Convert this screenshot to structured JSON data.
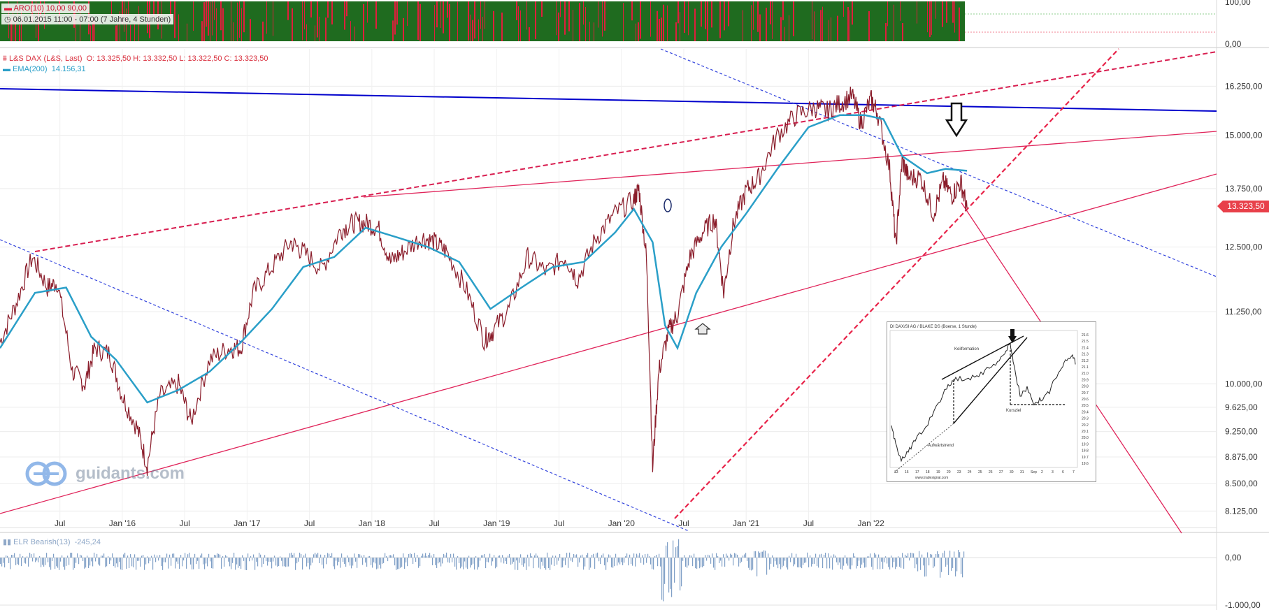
{
  "top_panel": {
    "indicator": "ARO(10)",
    "values": "10,00  90,00",
    "range": "06.01.2015 11:00 - 07:00",
    "duration": "(7 Jahre, 4 Stunden)",
    "axis": [
      "100,00",
      "0,00"
    ]
  },
  "main_panel": {
    "instrument": "L&S DAX (L&S, Last)",
    "ohlc": "O: 13.325,50  H: 13.332,50  L: 13.322,50  C: 13.323,50",
    "ema": "EMA(200)",
    "ema_value": "14.156,31",
    "last_price": "13.323,50"
  },
  "bottom_panel": {
    "indicator": "ELR Bearish(13)",
    "value": "-245,24",
    "axis": [
      "0,00",
      "-1.000,00"
    ]
  },
  "logo": {
    "text": "guidants.com"
  },
  "inset": {
    "title": "DI DAX/SI AG / BLAKE DS (Boerse, 1 Stunde)",
    "label_keil": "Keilformation",
    "label_kurs": "Kursziel",
    "label_auf": "Aufwärtstrend",
    "xlabels": [
      "13",
      "16",
      "17",
      "18",
      "19",
      "20",
      "23",
      "24",
      "25",
      "26",
      "27",
      "30",
      "31",
      "Sep",
      "2",
      "3",
      "6",
      "7"
    ],
    "ylabels": [
      "21.6",
      "21.5",
      "21.4",
      "21.3",
      "21.2",
      "21.1",
      "21.0",
      "20.9",
      "20.8",
      "20.7",
      "20.6",
      "20.5",
      "20.4",
      "20.3",
      "20.2",
      "20.1",
      "20.0",
      "19.9",
      "19.8",
      "19.7",
      "19.6"
    ],
    "footer": "www.tradesignal.com"
  },
  "colors": {
    "price": "#8a1c2a",
    "ema": "#2a9fc8",
    "trend_blue": "#0000cc",
    "trend_red": "#e0245a",
    "aro_green": "#1f6b1f",
    "aro_red": "#e01e3c",
    "elr": "#7f9fc6"
  },
  "chart_data": {
    "type": "line",
    "title": "L&S DAX (L&S, Last)",
    "y_ticks": [
      16250,
      15000,
      13750,
      12500,
      11250,
      10000,
      9625,
      9250,
      8875,
      8500,
      8125
    ],
    "y_tick_labels": [
      "16.250,00",
      "15.000,00",
      "13.750,00",
      "12.500,00",
      "11.250,00",
      "10.000,00",
      "9.625,00",
      "9.250,00",
      "8.875,00",
      "8.500,00",
      "8.125,00"
    ],
    "x_tick_labels": [
      "Jul",
      "Jan '16",
      "Jul",
      "Jan '17",
      "Jul",
      "Jan '18",
      "Jul",
      "Jan '19",
      "Jul",
      "Jan '20",
      "Jul",
      "Jan '21",
      "Jul",
      "Jan '22"
    ],
    "x_ticks": [
      2015.5,
      2016.0,
      2016.5,
      2017.0,
      2017.5,
      2018.0,
      2018.5,
      2019.0,
      2019.5,
      2020.0,
      2020.5,
      2021.0,
      2021.5,
      2022.0
    ],
    "xlim": [
      2015.02,
      2024.77
    ],
    "series": [
      {
        "name": "L&S DAX",
        "x": [
          2015.02,
          2015.15,
          2015.28,
          2015.4,
          2015.48,
          2015.6,
          2015.7,
          2015.78,
          2015.9,
          2016.0,
          2016.12,
          2016.2,
          2016.3,
          2016.45,
          2016.55,
          2016.7,
          2016.85,
          2016.95,
          2017.05,
          2017.2,
          2017.35,
          2017.45,
          2017.6,
          2017.75,
          2017.85,
          2017.95,
          2018.05,
          2018.15,
          2018.25,
          2018.4,
          2018.5,
          2018.6,
          2018.75,
          2018.9,
          2018.97,
          2019.1,
          2019.25,
          2019.4,
          2019.55,
          2019.65,
          2019.8,
          2019.95,
          2020.1,
          2020.14,
          2020.2,
          2020.25,
          2020.3,
          2020.38,
          2020.45,
          2020.55,
          2020.65,
          2020.75,
          2020.82,
          2020.9,
          2021.0,
          2021.1,
          2021.25,
          2021.4,
          2021.55,
          2021.65,
          2021.75,
          2021.85,
          2021.92,
          2022.0,
          2022.05,
          2022.15,
          2022.2,
          2022.25,
          2022.3,
          2022.4,
          2022.5,
          2022.58,
          2022.65,
          2022.72,
          2022.77
        ],
        "values": [
          10700,
          11400,
          12300,
          11700,
          11800,
          10200,
          10000,
          10600,
          10500,
          9800,
          9300,
          8750,
          9800,
          10000,
          9400,
          10400,
          10600,
          10600,
          11600,
          12100,
          12600,
          12400,
          12050,
          12850,
          13000,
          13000,
          12900,
          12200,
          12400,
          12700,
          12600,
          12400,
          11700,
          10750,
          10900,
          11300,
          12300,
          12000,
          12300,
          11850,
          12700,
          13200,
          13500,
          13750,
          12300,
          8700,
          10200,
          10900,
          11200,
          12300,
          12800,
          13100,
          11600,
          13000,
          13700,
          14000,
          15000,
          15500,
          15700,
          15600,
          15800,
          16000,
          15300,
          15900,
          15600,
          14200,
          12500,
          14400,
          14000,
          14000,
          13200,
          13900,
          13600,
          13900,
          13323
        ]
      },
      {
        "name": "EMA(200)",
        "x": [
          2015.02,
          2015.3,
          2015.55,
          2015.75,
          2015.95,
          2016.2,
          2016.45,
          2016.7,
          2016.95,
          2017.2,
          2017.45,
          2017.7,
          2017.95,
          2018.2,
          2018.45,
          2018.7,
          2018.95,
          2019.2,
          2019.45,
          2019.7,
          2019.95,
          2020.1,
          2020.25,
          2020.35,
          2020.45,
          2020.6,
          2020.8,
          2021.0,
          2021.25,
          2021.5,
          2021.75,
          2021.95,
          2022.1,
          2022.25,
          2022.45,
          2022.6,
          2022.77
        ],
        "values": [
          10600,
          11600,
          11700,
          10800,
          10400,
          9700,
          9900,
          10200,
          10700,
          11300,
          12100,
          12300,
          12900,
          12700,
          12500,
          12200,
          11300,
          11700,
          12100,
          12200,
          12800,
          13300,
          12600,
          11000,
          10600,
          11600,
          12500,
          13200,
          14200,
          15200,
          15500,
          15500,
          15400,
          14500,
          14100,
          14200,
          14156
        ]
      }
    ],
    "ylim": [
      8000,
      16500
    ],
    "grid": true
  }
}
